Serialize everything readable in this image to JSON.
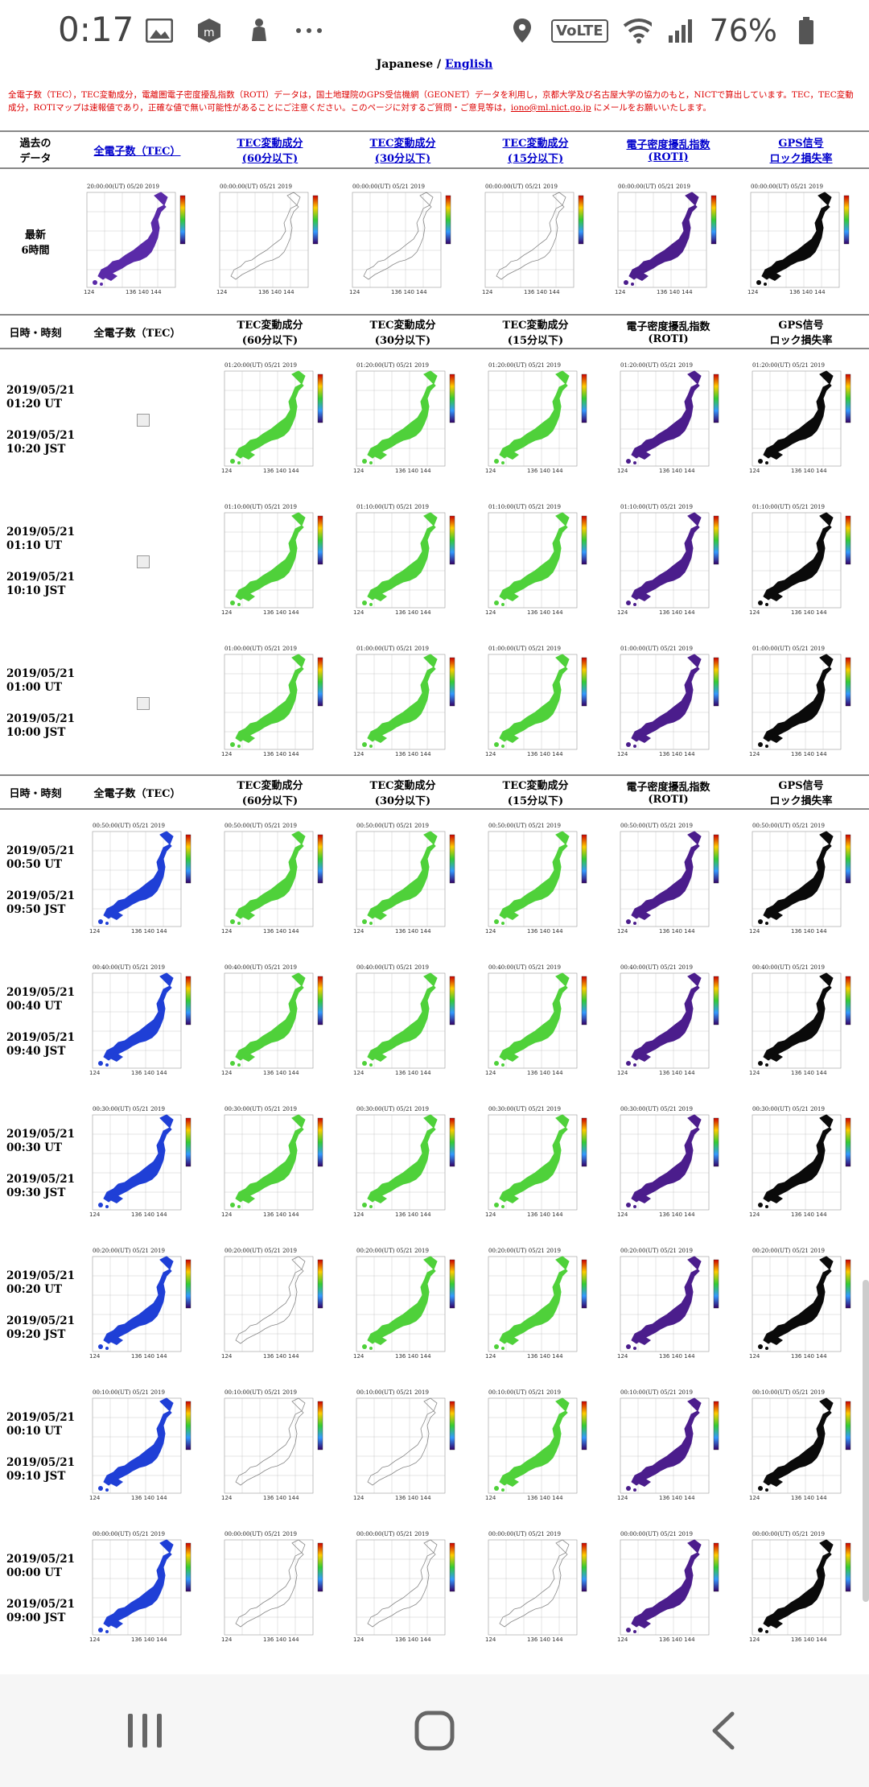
{
  "status_bar": {
    "time": "0:17",
    "battery": "76%",
    "volte": "VoLTE"
  },
  "page": {
    "lang_japanese": "Japanese",
    "lang_sep": " / ",
    "lang_english": "English",
    "notice": "全電子数（TEC），TEC変動成分，電離圏電子密度擾乱指数（ROTI）データは，国土地理院のGPS受信機網（GEONET）データを利用し，京都大学及び名古屋大学の協力のもと，NICTで算出しています。TEC，TEC変動成分，ROTIマップは速報値であり，正確な値で無い可能性があることにご注意ください。このページに対するご質問・ご意見等は，",
    "notice_mail": "iono@ml.nict.go.jp",
    "notice_tail": " にメールをお願いいたします。"
  },
  "header_latest": {
    "label_line1": "過去の",
    "label_line2": "データ",
    "cols": [
      {
        "l1": "全電子数（TEC）",
        "l2": ""
      },
      {
        "l1": "TEC変動成分",
        "l2": "(60分以下)"
      },
      {
        "l1": "TEC変動成分",
        "l2": "(30分以下)"
      },
      {
        "l1": "TEC変動成分",
        "l2": "(15分以下)"
      },
      {
        "l1": "電子密度擾乱指数",
        "l2": "(ROTI)"
      },
      {
        "l1": "GPS信号",
        "l2": "ロック損失率"
      }
    ]
  },
  "latest_row": {
    "label_line1": "最新",
    "label_line2": "6時間",
    "stamps": [
      "20:00:00(UT) 05/20 2019",
      "00:00:00(UT) 05/21 2019",
      "00:00:00(UT) 05/21 2019",
      "00:00:00(UT) 05/21 2019",
      "00:00:00(UT) 05/21 2019",
      "00:00:00(UT) 05/21 2019"
    ]
  },
  "header_mid": {
    "label": "日時・時刻",
    "cols": [
      {
        "l1": "全電子数（TEC）",
        "l2": ""
      },
      {
        "l1": "TEC変動成分",
        "l2": "(60分以下)"
      },
      {
        "l1": "TEC変動成分",
        "l2": "(30分以下)"
      },
      {
        "l1": "TEC変動成分",
        "l2": "(15分以下)"
      },
      {
        "l1": "電子密度擾乱指数",
        "l2": "(ROTI)"
      },
      {
        "l1": "GPS信号",
        "l2": "ロック損失率"
      }
    ]
  },
  "rows_a": [
    {
      "ut": "2019/05/21",
      "ut_time": "01:20 UT",
      "jst": "2019/05/21",
      "jst_time": "10:20 JST",
      "stamp": "01:20:00(UT)  05/21 2019"
    },
    {
      "ut": "2019/05/21",
      "ut_time": "01:10 UT",
      "jst": "2019/05/21",
      "jst_time": "10:10 JST",
      "stamp": "01:10:00(UT)  05/21 2019"
    },
    {
      "ut": "2019/05/21",
      "ut_time": "01:00 UT",
      "jst": "2019/05/21",
      "jst_time": "10:00 JST",
      "stamp": "01:00:00(UT)  05/21 2019"
    }
  ],
  "rows_b": [
    {
      "ut": "2019/05/21",
      "ut_time": "00:50 UT",
      "jst": "2019/05/21",
      "jst_time": "09:50 JST",
      "stamp": "00:50:00(UT)  05/21 2019"
    },
    {
      "ut": "2019/05/21",
      "ut_time": "00:40 UT",
      "jst": "2019/05/21",
      "jst_time": "09:40 JST",
      "stamp": "00:40:00(UT)  05/21 2019"
    },
    {
      "ut": "2019/05/21",
      "ut_time": "00:30 UT",
      "jst": "2019/05/21",
      "jst_time": "09:30 JST",
      "stamp": "00:30:00(UT)  05/21 2019"
    },
    {
      "ut": "2019/05/21",
      "ut_time": "00:20 UT",
      "jst": "2019/05/21",
      "jst_time": "09:20 JST",
      "stamp": "00:20:00(UT)  05/21 2019"
    },
    {
      "ut": "2019/05/21",
      "ut_time": "00:10 UT",
      "jst": "2019/05/21",
      "jst_time": "09:10 JST",
      "stamp": "00:10:00(UT)  05/21 2019"
    },
    {
      "ut": "2019/05/21",
      "ut_time": "00:00 UT",
      "jst": "2019/05/21",
      "jst_time": "09:00 JST",
      "stamp": "00:00:00(UT)  05/21 2019"
    }
  ],
  "colors": {
    "tec_blue": "#1f3fd6",
    "tec_purple": "#5a2aa8",
    "green": "#4fd13a",
    "roti": "#4b1d8c",
    "lol": "#0a0a0a",
    "link": "#0000cc",
    "notice_red": "#dd0000"
  }
}
